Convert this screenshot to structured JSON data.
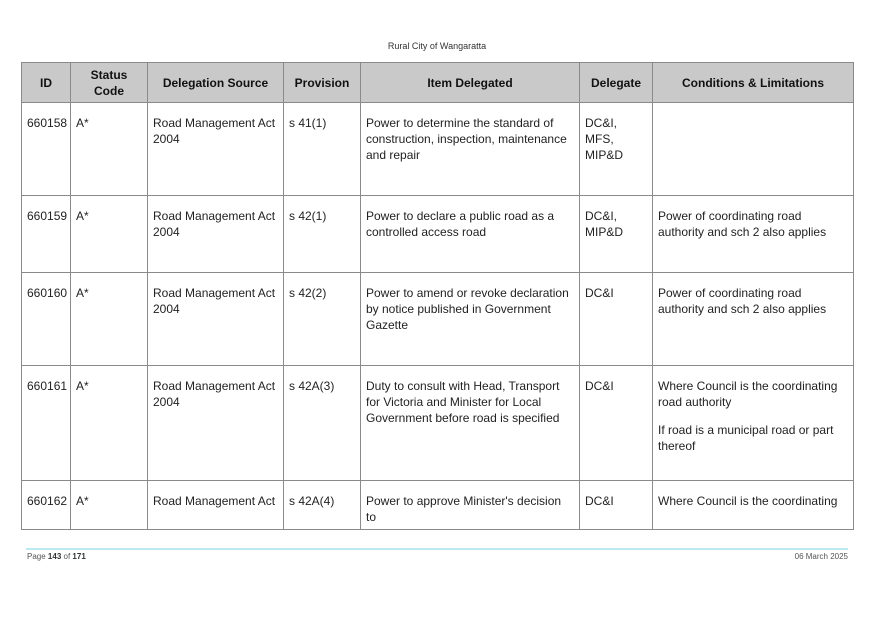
{
  "header": {
    "title": "Rural City of Wangaratta"
  },
  "table": {
    "columns": [
      "ID",
      "Status Code",
      "Delegation Source",
      "Provision",
      "Item Delegated",
      "Delegate",
      "Conditions & Limitations"
    ],
    "rows": [
      {
        "id": "660158",
        "status": "A*",
        "source": "Road Management Act 2004",
        "provision": "s 41(1)",
        "item": "Power to determine the standard of construction, inspection, maintenance and repair",
        "delegate": "DC&I, MFS, MIP&D",
        "conditions": [
          "",
          ""
        ]
      },
      {
        "id": "660159",
        "status": "A*",
        "source": "Road Management Act 2004",
        "provision": "s 42(1)",
        "item": "Power to declare a public road as a controlled access road",
        "delegate": "DC&I, MIP&D",
        "conditions": [
          "Power of coordinating road authority and sch 2 also applies",
          ""
        ]
      },
      {
        "id": "660160",
        "status": "A*",
        "source": "Road Management Act 2004",
        "provision": "s 42(2)",
        "item": "Power to amend or revoke declaration by notice published in Government Gazette",
        "delegate": "DC&I",
        "conditions": [
          "Power of coordinating road authority and sch 2 also applies",
          ""
        ]
      },
      {
        "id": "660161",
        "status": "A*",
        "source": "Road Management Act 2004",
        "provision": "s 42A(3)",
        "item": "Duty to consult with Head, Transport for Victoria and Minister for Local Government before road is specified",
        "delegate": "DC&I",
        "conditions": [
          "Where Council is the coordinating road authority",
          "If road is a municipal road or part thereof"
        ]
      },
      {
        "id": "660162",
        "status": "A*",
        "source": "Road Management Act",
        "provision": "s 42A(4)",
        "item": "Power to approve Minister's decision to",
        "delegate": "DC&I",
        "conditions": [
          "Where Council is the coordinating",
          ""
        ]
      }
    ]
  },
  "footer": {
    "page_prefix": "Page",
    "page_number": "143",
    "page_of": "of",
    "page_total": "171",
    "date": "06 March 2025"
  },
  "colors": {
    "header_fill": "#c9c9c9",
    "border": "#8a8a8a",
    "footer_rule": "#b9e9f1"
  }
}
